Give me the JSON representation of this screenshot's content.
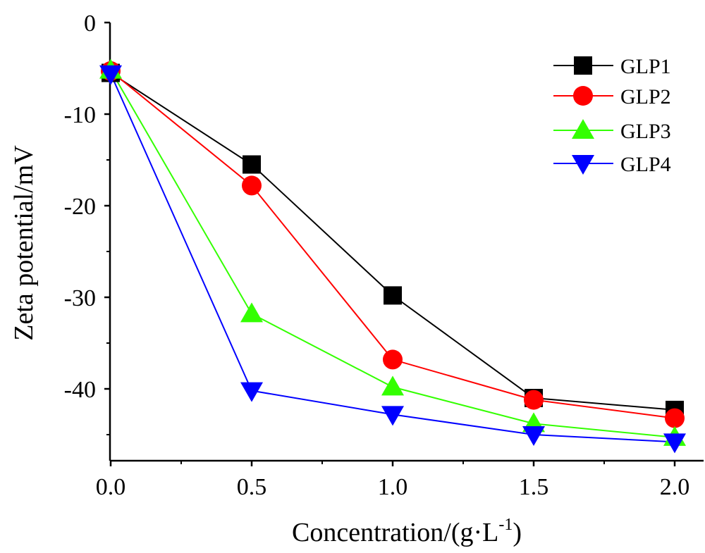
{
  "chart_data": {
    "type": "line",
    "xlabel": "Concentration/(g·L",
    "xlabel_sup": "-1",
    "xlabel_close": ")",
    "ylabel": "Zeta potential/mV",
    "xlim": [
      0.0,
      2.1
    ],
    "ylim": [
      -47,
      0
    ],
    "xticks": [
      0.0,
      0.5,
      1.0,
      1.5,
      2.0
    ],
    "xtick_labels": [
      "0.0",
      "0.5",
      "1.0",
      "1.5",
      "2.0"
    ],
    "yticks": [
      0,
      -10,
      -20,
      -30,
      -40
    ],
    "ytick_labels": [
      "0",
      "-10",
      "-20",
      "-30",
      "-40"
    ],
    "x": [
      0.0,
      0.5,
      1.0,
      1.5,
      2.0
    ],
    "grid": false,
    "legend_position": "top-right",
    "series": [
      {
        "name": "GLP1",
        "color": "#000000",
        "marker": "square",
        "values": [
          -5.5,
          -15.5,
          -29.8,
          -41.0,
          -42.3
        ]
      },
      {
        "name": "GLP2",
        "color": "#ff0000",
        "marker": "circle",
        "values": [
          -5.3,
          -17.8,
          -36.8,
          -41.2,
          -43.2
        ]
      },
      {
        "name": "GLP3",
        "color": "#33ff00",
        "marker": "triangle-up",
        "values": [
          -5.2,
          -31.8,
          -39.8,
          -43.8,
          -45.3
        ]
      },
      {
        "name": "GLP4",
        "color": "#0000ff",
        "marker": "triangle-down",
        "values": [
          -5.6,
          -40.2,
          -42.8,
          -45.0,
          -45.8
        ]
      }
    ]
  }
}
